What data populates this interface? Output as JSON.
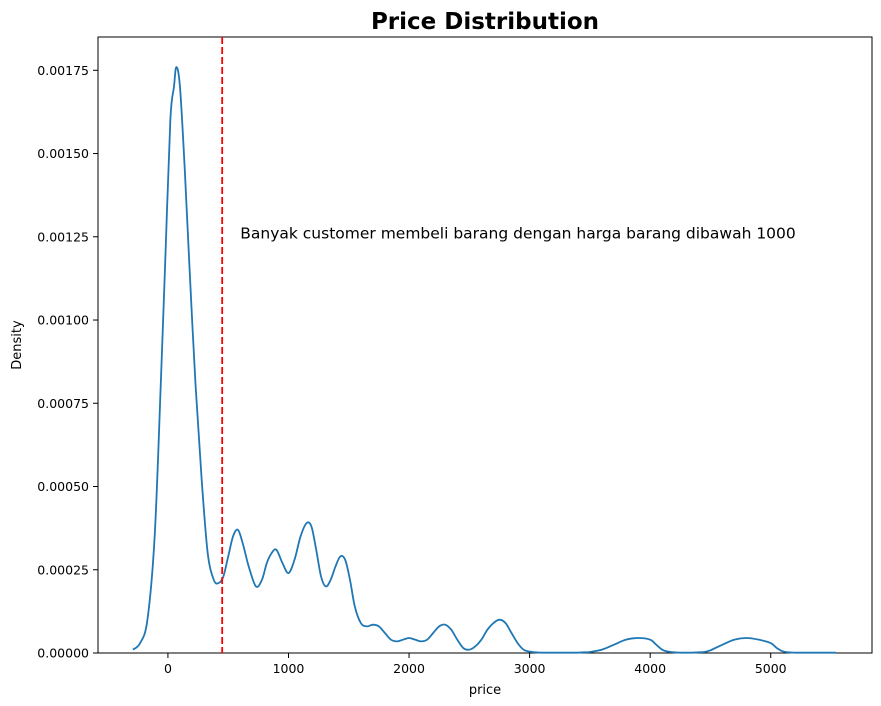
{
  "chart_data": {
    "type": "line",
    "title": "Price Distribution",
    "xlabel": "price",
    "ylabel": "Density",
    "xlim": [
      -580,
      5840
    ],
    "ylim": [
      0,
      0.00185
    ],
    "xticks": [
      0,
      1000,
      2000,
      3000,
      4000,
      5000
    ],
    "yticks": [
      0,
      0.00025,
      0.0005,
      0.00075,
      0.001,
      0.00125,
      0.0015,
      0.00175
    ],
    "ytick_labels": [
      "0.00000",
      "0.00025",
      "0.00050",
      "0.00075",
      "0.00100",
      "0.00125",
      "0.00150",
      "0.00175"
    ],
    "grid": false,
    "series": [
      {
        "color": "#1f77b4",
        "x": [
          -290,
          -230,
          -170,
          -110,
          -60,
          -20,
          20,
          50,
          70,
          100,
          140,
          180,
          230,
          280,
          330,
          380,
          420,
          460,
          500,
          540,
          580,
          620,
          670,
          730,
          780,
          820,
          860,
          900,
          950,
          1000,
          1050,
          1100,
          1150,
          1190,
          1230,
          1270,
          1310,
          1350,
          1390,
          1430,
          1470,
          1510,
          1550,
          1600,
          1650,
          1700,
          1750,
          1800,
          1850,
          1900,
          1950,
          2000,
          2050,
          2100,
          2150,
          2200,
          2250,
          2300,
          2350,
          2400,
          2450,
          2500,
          2550,
          2600,
          2650,
          2700,
          2750,
          2800,
          2850,
          2900,
          2950,
          3000,
          3050,
          3100,
          3150,
          3200,
          3250,
          3300,
          3350,
          3400,
          3450,
          3500,
          3600,
          3700,
          3800,
          3900,
          4000,
          4050,
          4100,
          4150,
          4200,
          4250,
          4300,
          4350,
          4400,
          4450,
          4500,
          4600,
          4700,
          4800,
          4900,
          5000,
          5050,
          5100,
          5150,
          5200,
          5250,
          5300,
          5350,
          5400,
          5450,
          5500,
          5540
        ],
        "y": [
          1e-05,
          3e-05,
          0.0001,
          0.00035,
          0.0008,
          0.0012,
          0.0016,
          0.0017,
          0.00176,
          0.0017,
          0.00145,
          0.00115,
          0.0008,
          0.00052,
          0.0003,
          0.00022,
          0.00021,
          0.00023,
          0.00029,
          0.00035,
          0.00037,
          0.00033,
          0.00026,
          0.0002,
          0.00022,
          0.00027,
          0.0003,
          0.00031,
          0.00027,
          0.00024,
          0.00028,
          0.00035,
          0.00039,
          0.00038,
          0.00031,
          0.00023,
          0.0002,
          0.00022,
          0.00026,
          0.00029,
          0.00028,
          0.00022,
          0.00014,
          9e-05,
          8e-05,
          8.5e-05,
          8e-05,
          6e-05,
          4e-05,
          3.5e-05,
          4e-05,
          4.5e-05,
          4e-05,
          3.5e-05,
          4e-05,
          6e-05,
          8e-05,
          8.5e-05,
          7e-05,
          4e-05,
          1.5e-05,
          1e-05,
          2e-05,
          4e-05,
          7e-05,
          9e-05,
          0.0001,
          9e-05,
          6e-05,
          3e-05,
          1e-05,
          4e-06,
          2e-06,
          1e-06,
          1e-06,
          1e-06,
          1e-06,
          1e-06,
          1e-06,
          1e-06,
          2e-06,
          3e-06,
          1e-05,
          2.5e-05,
          4e-05,
          4.5e-05,
          4e-05,
          2.5e-05,
          1e-05,
          4e-06,
          2e-06,
          1e-06,
          1e-06,
          1e-06,
          2e-06,
          3e-06,
          8e-06,
          2.5e-05,
          4e-05,
          4.5e-05,
          4e-05,
          3e-05,
          1.5e-05,
          5e-06,
          2e-06,
          1e-06,
          1e-06,
          1e-06,
          1e-06,
          1e-06,
          1e-06,
          1e-06,
          1e-06
        ]
      }
    ],
    "reference_line": {
      "x": 450,
      "color": "#ff0000",
      "style": "dashed"
    },
    "annotation": {
      "text": "Banyak customer membeli barang dengan harga barang dibawah 1000",
      "x": 600,
      "y": 0.00126
    }
  }
}
